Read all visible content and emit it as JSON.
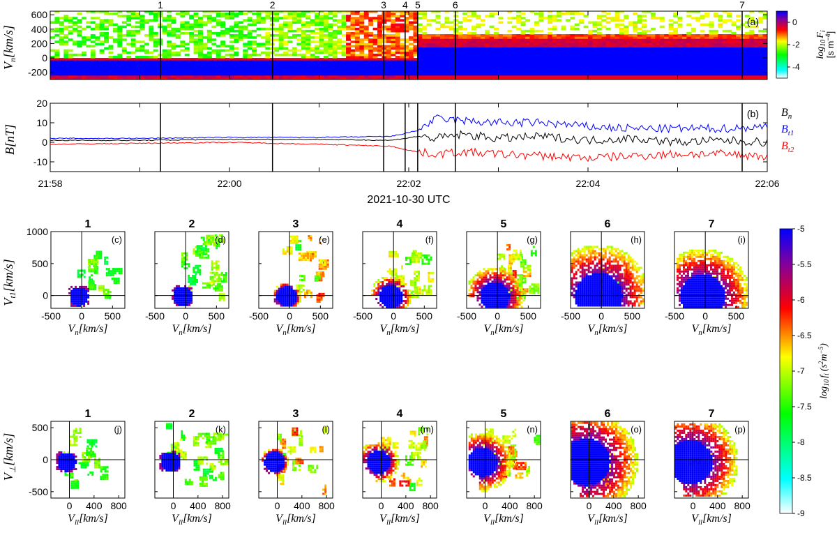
{
  "chart_data": [
    {
      "panel": "(a)",
      "type": "heatmap",
      "ylabel": "V_n[km/s]",
      "yticks": [
        600,
        400,
        200,
        0,
        -200
      ],
      "ylim": [
        -300,
        650
      ],
      "x_tick_labels": [
        "21:58",
        "22:00",
        "22:02",
        "22:04",
        "22:06"
      ],
      "x_range_minutes": [
        0,
        8
      ],
      "colorbar": {
        "label": "log10 F_i [s m^-4]",
        "ticks": [
          0,
          -2,
          -4
        ],
        "range": [
          -5,
          1
        ]
      },
      "event_markers": [
        {
          "label": "1",
          "minute": 1.23
        },
        {
          "label": "2",
          "minute": 2.48
        },
        {
          "label": "3",
          "minute": 3.72
        },
        {
          "label": "4",
          "minute": 3.96
        },
        {
          "label": "5",
          "minute": 4.1
        },
        {
          "label": "6",
          "minute": 4.52
        },
        {
          "label": "7",
          "minute": 7.72
        }
      ]
    },
    {
      "panel": "(b)",
      "type": "line",
      "ylabel": "B[nT]",
      "yticks": [
        20,
        10,
        0,
        -10
      ],
      "ylim": [
        -15,
        20
      ],
      "x_tick_labels": [
        "21:58",
        "22:00",
        "22:02",
        "22:04",
        "22:06"
      ],
      "xlabel": "2021-10-30 UTC",
      "series": [
        {
          "name": "B_n",
          "color": "#000000",
          "minutes": [
            0,
            1,
            2,
            3,
            3.8,
            4.1,
            4.3,
            4.6,
            5,
            5.5,
            6,
            6.5,
            7,
            7.5,
            8
          ],
          "values": [
            1,
            1,
            1.5,
            1.5,
            1,
            3,
            2,
            4,
            2,
            3,
            1,
            2,
            0,
            1,
            0
          ]
        },
        {
          "name": "B_t1",
          "color": "#0000ff",
          "minutes": [
            0,
            1,
            2,
            3,
            3.8,
            4.1,
            4.3,
            4.6,
            5,
            5.5,
            6,
            6.5,
            7,
            7.5,
            8
          ],
          "values": [
            2,
            2,
            2.5,
            2.5,
            3,
            6,
            12,
            11,
            10,
            10,
            8,
            7,
            7,
            7,
            8
          ]
        },
        {
          "name": "B_t2",
          "color": "#ff0000",
          "minutes": [
            0,
            1,
            2,
            3,
            3.8,
            4.1,
            4.3,
            4.6,
            5,
            5.5,
            6,
            6.5,
            7,
            7.5,
            8
          ],
          "values": [
            -1,
            -0.5,
            0,
            -1,
            -2,
            -5,
            -6,
            -5,
            -6,
            -7,
            -8,
            -7,
            -6,
            -6,
            -7
          ]
        }
      ]
    },
    {
      "panel": "(c)-(i)",
      "type": "heatmap",
      "panel_titles": [
        "1",
        "2",
        "3",
        "4",
        "5",
        "6",
        "7"
      ],
      "panel_letters": [
        "(c)",
        "(d)",
        "(e)",
        "(f)",
        "(g)",
        "(h)",
        "(i)"
      ],
      "xlabel": "V_n[km/s]",
      "ylabel": "V_t1[km/s]",
      "xticks": [
        -500,
        0,
        500
      ],
      "yticks": [
        1000,
        500,
        0
      ],
      "xlim": [
        -500,
        700
      ],
      "ylim": [
        -200,
        1000
      ]
    },
    {
      "panel": "(j)-(p)",
      "type": "heatmap",
      "panel_titles": [
        "1",
        "2",
        "3",
        "4",
        "5",
        "6",
        "7"
      ],
      "panel_letters": [
        "(j)",
        "(k)",
        "(l)",
        "(m)",
        "(n)",
        "(o)",
        "(p)"
      ],
      "xlabel": "V_ll[km/s]",
      "ylabel": "V_⊥[km/s]",
      "xticks": [
        0,
        400,
        800
      ],
      "yticks": [
        500,
        0,
        -500
      ],
      "xlim": [
        -300,
        900
      ],
      "ylim": [
        -600,
        600
      ],
      "colorbar": {
        "label": "log10 f_i (s^2 m^-5)",
        "ticks": [
          -5,
          -5.5,
          -6,
          -6.5,
          -7,
          -7.5,
          -8,
          -8.5,
          -9
        ],
        "range": [
          -9,
          -5
        ]
      }
    }
  ],
  "text": {
    "panel_a_ylabel": "V",
    "panel_a_ylabel_sub": "n",
    "panel_a_ylabel_unit": "[km/s]",
    "cbar1_label_main": "log",
    "cbar1_label_sub": "10",
    "cbar1_label_F": "F",
    "cbar1_label_i": "i",
    "cbar1_unit": "[s m",
    "cbar1_unit_exp": "−4",
    "cbar1_unit_close": "]",
    "panel_b_ylabel": "B[nT]",
    "legend_bn": "B",
    "legend_bn_sub": "n",
    "legend_bt1": "B",
    "legend_bt1_sub": "t1",
    "legend_bt2": "B",
    "legend_bt2_sub": "t2",
    "time_axis_label": "2021-10-30 UTC",
    "vn_axis_label": "V",
    "vn_axis_sub": "n",
    "vt1_axis_label": "V",
    "vt1_axis_sub": "t1",
    "vll_axis_label": "V",
    "vll_axis_sub": "ll",
    "vperp_axis_label": "V",
    "vperp_axis_sub": "⊥",
    "unit_kms": "[km/s]",
    "cbar2_label": "log",
    "cbar2_label_sub": "10",
    "cbar2_label_f": "f",
    "cbar2_label_i": "i",
    "cbar2_unit": "(s",
    "cbar2_unit_exp1": "2",
    "cbar2_unit_m": "m",
    "cbar2_unit_exp2": "−5",
    "cbar2_unit_close": ")"
  }
}
